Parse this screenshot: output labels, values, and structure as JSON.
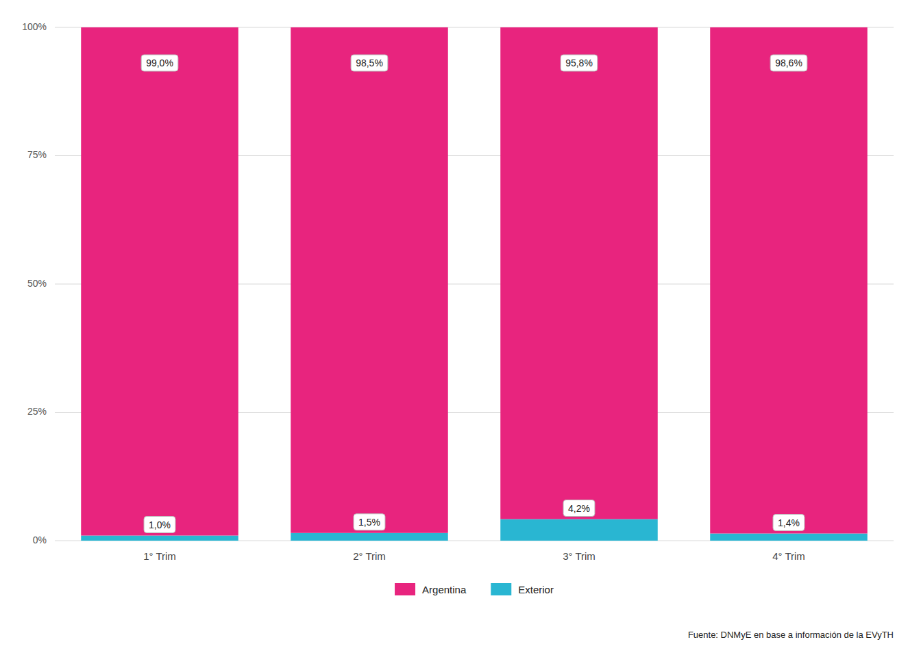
{
  "chart_data": {
    "type": "bar",
    "stacked": true,
    "categories": [
      "1° Trim",
      "2° Trim",
      "3° Trim",
      "4° Trim"
    ],
    "series": [
      {
        "name": "Exterior",
        "color": "#29B6D2",
        "values": [
          1.0,
          1.5,
          4.2,
          1.4
        ],
        "value_labels": [
          "1,0%",
          "1,5%",
          "4,2%",
          "1,4%"
        ]
      },
      {
        "name": "Argentina",
        "color": "#E8247E",
        "values": [
          99.0,
          98.5,
          95.8,
          98.6
        ],
        "value_labels": [
          "99,0%",
          "98,5%",
          "95,8%",
          "98,6%"
        ]
      }
    ],
    "ylim": [
      0,
      100
    ],
    "yticks": [
      {
        "value": 0,
        "label": "0%"
      },
      {
        "value": 25,
        "label": "25%"
      },
      {
        "value": 50,
        "label": "50%"
      },
      {
        "value": 75,
        "label": "75%"
      },
      {
        "value": 100,
        "label": "100%"
      }
    ],
    "grid": true,
    "legend": "bottom",
    "data_labels": true,
    "annotations": [
      "Fuente: DNMyE en base a información de la EVyTH"
    ]
  }
}
